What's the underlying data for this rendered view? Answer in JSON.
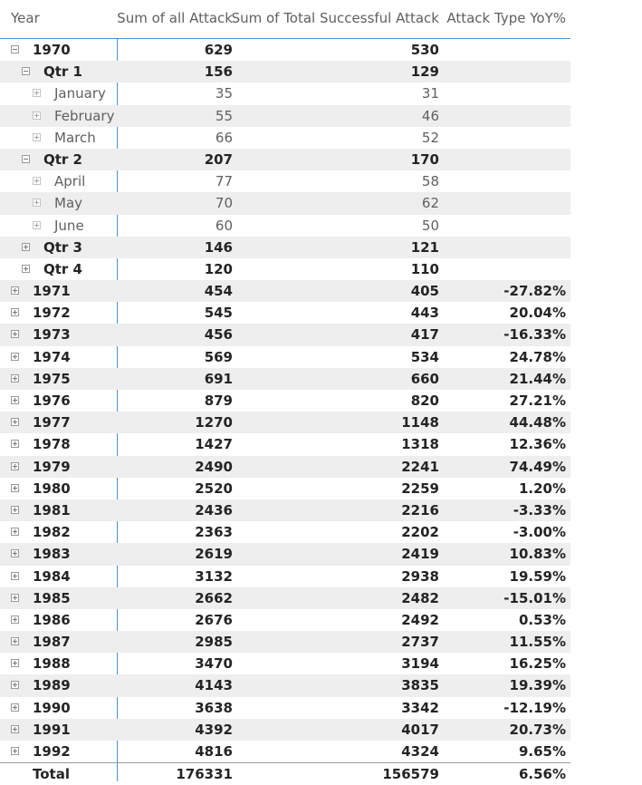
{
  "header": {
    "year": "Year",
    "attack": "Sum of all Attack",
    "success": "Sum of Total Successful Attack",
    "yoy": "Attack Type YoY%"
  },
  "rows": [
    {
      "label": "1970",
      "level": 0,
      "expanded": true,
      "attack": "629",
      "success": "530",
      "yoy": ""
    },
    {
      "label": "Qtr 1",
      "level": 1,
      "expanded": true,
      "attack": "156",
      "success": "129",
      "yoy": ""
    },
    {
      "label": "January",
      "level": 2,
      "expanded": false,
      "attack": "35",
      "success": "31",
      "yoy": ""
    },
    {
      "label": "February",
      "level": 2,
      "expanded": false,
      "attack": "55",
      "success": "46",
      "yoy": ""
    },
    {
      "label": "March",
      "level": 2,
      "expanded": false,
      "attack": "66",
      "success": "52",
      "yoy": ""
    },
    {
      "label": "Qtr 2",
      "level": 1,
      "expanded": true,
      "attack": "207",
      "success": "170",
      "yoy": ""
    },
    {
      "label": "April",
      "level": 2,
      "expanded": false,
      "attack": "77",
      "success": "58",
      "yoy": ""
    },
    {
      "label": "May",
      "level": 2,
      "expanded": false,
      "attack": "70",
      "success": "62",
      "yoy": ""
    },
    {
      "label": "June",
      "level": 2,
      "expanded": false,
      "attack": "60",
      "success": "50",
      "yoy": ""
    },
    {
      "label": "Qtr 3",
      "level": 1,
      "expanded": false,
      "attack": "146",
      "success": "121",
      "yoy": ""
    },
    {
      "label": "Qtr 4",
      "level": 1,
      "expanded": false,
      "attack": "120",
      "success": "110",
      "yoy": ""
    },
    {
      "label": "1971",
      "level": 0,
      "expanded": false,
      "attack": "454",
      "success": "405",
      "yoy": "-27.82%"
    },
    {
      "label": "1972",
      "level": 0,
      "expanded": false,
      "attack": "545",
      "success": "443",
      "yoy": "20.04%"
    },
    {
      "label": "1973",
      "level": 0,
      "expanded": false,
      "attack": "456",
      "success": "417",
      "yoy": "-16.33%"
    },
    {
      "label": "1974",
      "level": 0,
      "expanded": false,
      "attack": "569",
      "success": "534",
      "yoy": "24.78%"
    },
    {
      "label": "1975",
      "level": 0,
      "expanded": false,
      "attack": "691",
      "success": "660",
      "yoy": "21.44%"
    },
    {
      "label": "1976",
      "level": 0,
      "expanded": false,
      "attack": "879",
      "success": "820",
      "yoy": "27.21%"
    },
    {
      "label": "1977",
      "level": 0,
      "expanded": false,
      "attack": "1270",
      "success": "1148",
      "yoy": "44.48%"
    },
    {
      "label": "1978",
      "level": 0,
      "expanded": false,
      "attack": "1427",
      "success": "1318",
      "yoy": "12.36%"
    },
    {
      "label": "1979",
      "level": 0,
      "expanded": false,
      "attack": "2490",
      "success": "2241",
      "yoy": "74.49%"
    },
    {
      "label": "1980",
      "level": 0,
      "expanded": false,
      "attack": "2520",
      "success": "2259",
      "yoy": "1.20%"
    },
    {
      "label": "1981",
      "level": 0,
      "expanded": false,
      "attack": "2436",
      "success": "2216",
      "yoy": "-3.33%"
    },
    {
      "label": "1982",
      "level": 0,
      "expanded": false,
      "attack": "2363",
      "success": "2202",
      "yoy": "-3.00%"
    },
    {
      "label": "1983",
      "level": 0,
      "expanded": false,
      "attack": "2619",
      "success": "2419",
      "yoy": "10.83%"
    },
    {
      "label": "1984",
      "level": 0,
      "expanded": false,
      "attack": "3132",
      "success": "2938",
      "yoy": "19.59%"
    },
    {
      "label": "1985",
      "level": 0,
      "expanded": false,
      "attack": "2662",
      "success": "2482",
      "yoy": "-15.01%"
    },
    {
      "label": "1986",
      "level": 0,
      "expanded": false,
      "attack": "2676",
      "success": "2492",
      "yoy": "0.53%"
    },
    {
      "label": "1987",
      "level": 0,
      "expanded": false,
      "attack": "2985",
      "success": "2737",
      "yoy": "11.55%"
    },
    {
      "label": "1988",
      "level": 0,
      "expanded": false,
      "attack": "3470",
      "success": "3194",
      "yoy": "16.25%"
    },
    {
      "label": "1989",
      "level": 0,
      "expanded": false,
      "attack": "4143",
      "success": "3835",
      "yoy": "19.39%"
    },
    {
      "label": "1990",
      "level": 0,
      "expanded": false,
      "attack": "3638",
      "success": "3342",
      "yoy": "-12.19%"
    },
    {
      "label": "1991",
      "level": 0,
      "expanded": false,
      "attack": "4392",
      "success": "4017",
      "yoy": "20.73%"
    },
    {
      "label": "1992",
      "level": 0,
      "expanded": false,
      "attack": "4816",
      "success": "4324",
      "yoy": "9.65%"
    }
  ],
  "total": {
    "label": "Total",
    "attack": "176331",
    "success": "156579",
    "yoy": "6.56%"
  },
  "colors": {
    "accent_line": "#4a8fd0",
    "row_shade": "#eeeeee",
    "text_dark": "#252423",
    "text_muted": "#5f5f5f"
  },
  "icons": {
    "expanded": "collapse-minus-icon",
    "collapsed": "expand-plus-icon"
  }
}
